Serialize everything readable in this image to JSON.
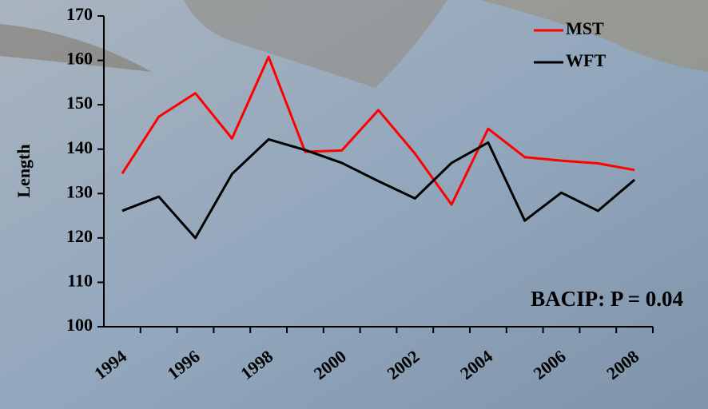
{
  "chart_data": {
    "type": "line",
    "y_label": "Length",
    "annotation": "BACIP: P = 0.04",
    "categories": [
      "1994",
      null,
      "1996",
      null,
      "1998",
      null,
      "2000",
      null,
      "2002",
      null,
      "2004",
      null,
      "2006",
      null,
      "2008"
    ],
    "series": [
      {
        "name": "MST",
        "color": "#ff0000",
        "values": [
          134.5,
          147.3,
          152.6,
          142.4,
          160.8,
          139.4,
          139.7,
          148.8,
          139.0,
          127.5,
          144.6,
          138.2,
          137.4,
          136.8,
          135.3
        ]
      },
      {
        "name": "WFT",
        "color": "#000000",
        "values": [
          126.1,
          129.3,
          120.0,
          134.4,
          142.2,
          139.8,
          136.9,
          132.8,
          128.9,
          136.9,
          141.5,
          123.9,
          130.2,
          126.1,
          133.1
        ]
      }
    ],
    "ylim": [
      100,
      170
    ],
    "yticks": [
      100,
      110,
      120,
      130,
      140,
      150,
      160,
      170
    ],
    "legend": "upper right",
    "grid": false
  }
}
